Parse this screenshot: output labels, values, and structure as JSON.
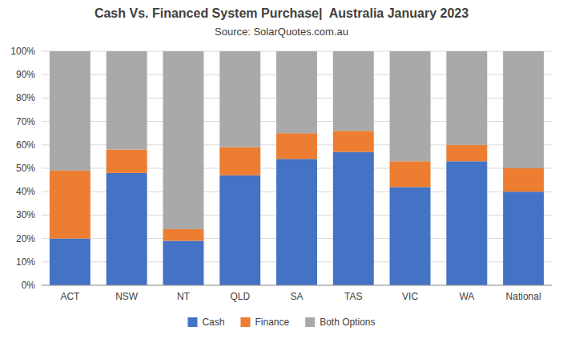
{
  "chart_data": {
    "type": "bar",
    "stacked": true,
    "title": "Cash Vs. Financed System Purchase|  Australia January 2023",
    "subtitle": "Source: SolarQuotes.com.au",
    "categories": [
      "ACT",
      "NSW",
      "NT",
      "QLD",
      "SA",
      "TAS",
      "VIC",
      "WA",
      "National"
    ],
    "series": [
      {
        "name": "Cash",
        "color": "#4472C4",
        "values": [
          20,
          48,
          19,
          47,
          54,
          57,
          42,
          53,
          40
        ]
      },
      {
        "name": "Finance",
        "color": "#ED7D31",
        "values": [
          29,
          10,
          5,
          12,
          11,
          9,
          11,
          7,
          10
        ]
      },
      {
        "name": "Both Options",
        "color": "#A9A9A9",
        "values": [
          51,
          42,
          76,
          41,
          35,
          34,
          47,
          40,
          50
        ]
      }
    ],
    "ylim": [
      0,
      100
    ],
    "yticks": [
      {
        "value": 0,
        "label": "0%"
      },
      {
        "value": 10,
        "label": "10%"
      },
      {
        "value": 20,
        "label": "20%"
      },
      {
        "value": 30,
        "label": "30%"
      },
      {
        "value": 40,
        "label": "40%"
      },
      {
        "value": 50,
        "label": "50%"
      },
      {
        "value": 60,
        "label": "60%"
      },
      {
        "value": 70,
        "label": "70%"
      },
      {
        "value": 80,
        "label": "80%"
      },
      {
        "value": 90,
        "label": "90%"
      },
      {
        "value": 100,
        "label": "100%"
      }
    ],
    "grid": true,
    "legend": "bottom"
  }
}
